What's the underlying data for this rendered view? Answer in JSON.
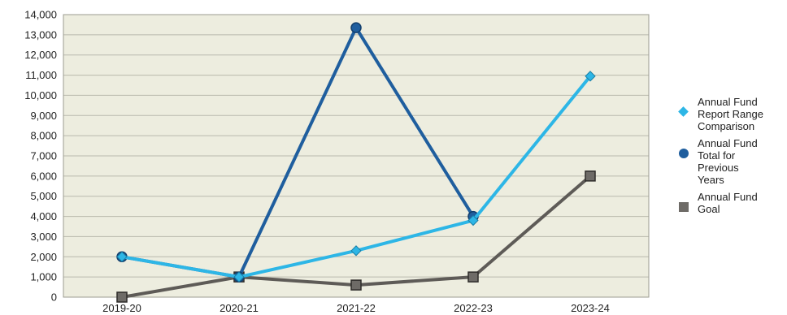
{
  "chart_data": {
    "type": "line",
    "title": "",
    "xlabel": "",
    "ylabel": "",
    "categories": [
      "2019-20",
      "2020-21",
      "2021-22",
      "2022-23",
      "2023-24"
    ],
    "ylim": [
      0,
      14000
    ],
    "yticks": [
      0,
      1000,
      2000,
      3000,
      4000,
      5000,
      6000,
      7000,
      8000,
      9000,
      10000,
      11000,
      12000,
      13000,
      14000
    ],
    "ytick_labels": [
      "0",
      "1,000",
      "2,000",
      "3,000",
      "4,000",
      "5,000",
      "6,000",
      "7,000",
      "8,000",
      "9,000",
      "10,000",
      "11,000",
      "12,000",
      "13,000",
      "14,000"
    ],
    "grid": true,
    "legend_position": "right",
    "series": [
      {
        "name": "Annual Fund\nReport Range\nComparison",
        "values": [
          2000,
          1000,
          2300,
          3800,
          10950
        ],
        "color": "#2db6e6",
        "marker": "diamond"
      },
      {
        "name": "Annual Fund\nTotal for\nPrevious\nYears",
        "values": [
          2000,
          1000,
          13350,
          4000,
          null
        ],
        "color": "#1f5e9e",
        "marker": "circle"
      },
      {
        "name": "Annual Fund\nGoal",
        "values": [
          0,
          1000,
          600,
          1000,
          6000
        ],
        "color": "#5e5b57",
        "marker": "square"
      }
    ]
  }
}
